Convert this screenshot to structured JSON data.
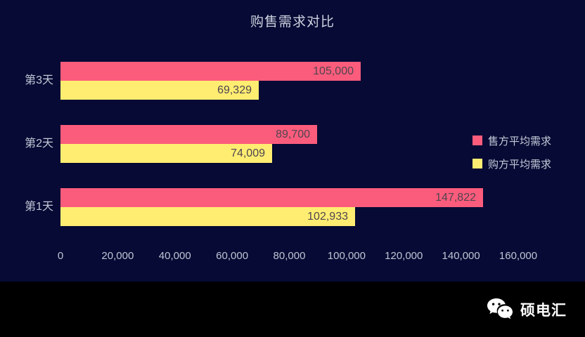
{
  "title": "购售需求对比",
  "colors": {
    "background": "#060A34",
    "footer_background": "#000000",
    "seller_bar": "#FC5C7C",
    "buyer_bar": "#FFED71",
    "axis_text": "#BFC5D4",
    "category_text": "#C4C9D8",
    "title_text": "#CDD3DF",
    "value_text": "#4E4550",
    "brand_text": "#FFFFFF"
  },
  "chart_data": {
    "type": "bar",
    "orientation": "horizontal",
    "title": "购售需求对比",
    "categories": [
      "第3天",
      "第2天",
      "第1天"
    ],
    "series": [
      {
        "name": "售方平均需求",
        "color": "#FC5C7C",
        "values": [
          105000,
          89700,
          147822
        ],
        "labels": [
          "105,000",
          "89,700",
          "147,822"
        ]
      },
      {
        "name": "购方平均需求",
        "color": "#FFED71",
        "values": [
          69329,
          74009,
          102933
        ],
        "labels": [
          "69,329",
          "74,009",
          "102,933"
        ]
      }
    ],
    "x_axis": {
      "min": 0,
      "max": 160000,
      "ticks": [
        "0",
        "20,000",
        "40,000",
        "60,000",
        "80,000",
        "100,000",
        "120,000",
        "140,000",
        "160,000"
      ]
    },
    "legend_position": "right",
    "grid": false,
    "value_labels": "inside-right"
  },
  "footer": {
    "brand": "硕电汇",
    "logo": "wechat-icon"
  }
}
